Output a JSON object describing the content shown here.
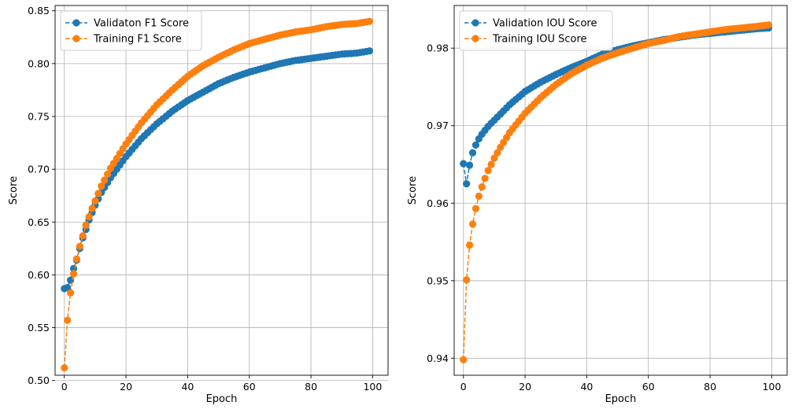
{
  "chart_data": [
    {
      "type": "line",
      "title": "",
      "xlabel": "Epoch",
      "ylabel": "Score",
      "xlim": [
        -3,
        105
      ],
      "ylim": [
        0.505,
        0.855
      ],
      "xticks": [
        "0",
        "20",
        "40",
        "60",
        "80",
        "100"
      ],
      "yticks": [
        "0.50",
        "0.55",
        "0.60",
        "0.65",
        "0.70",
        "0.75",
        "0.80",
        "0.85"
      ],
      "grid": true,
      "legend_position": "top-left",
      "series": [
        {
          "name": "Validaton F1 Score",
          "color": "#1f77b4",
          "marker": "circle",
          "linestyle": "dashed",
          "anchors": [
            [
              0,
              0.587
            ],
            [
              1,
              0.588
            ],
            [
              2,
              0.595
            ],
            [
              3,
              0.606
            ],
            [
              4,
              0.614
            ],
            [
              5,
              0.625
            ],
            [
              6,
              0.635
            ],
            [
              7,
              0.643
            ],
            [
              8,
              0.652
            ],
            [
              9,
              0.659
            ],
            [
              10,
              0.666
            ],
            [
              12,
              0.678
            ],
            [
              15,
              0.692
            ],
            [
              20,
              0.712
            ],
            [
              25,
              0.729
            ],
            [
              30,
              0.743
            ],
            [
              35,
              0.755
            ],
            [
              40,
              0.765
            ],
            [
              45,
              0.773
            ],
            [
              50,
              0.781
            ],
            [
              55,
              0.787
            ],
            [
              60,
              0.792
            ],
            [
              65,
              0.796
            ],
            [
              70,
              0.8
            ],
            [
              75,
              0.803
            ],
            [
              80,
              0.805
            ],
            [
              85,
              0.807
            ],
            [
              90,
              0.809
            ],
            [
              95,
              0.81
            ],
            [
              99,
              0.812
            ]
          ]
        },
        {
          "name": "Training F1 Score",
          "color": "#ff7f0e",
          "marker": "circle",
          "linestyle": "dashed",
          "anchors": [
            [
              0,
              0.512
            ],
            [
              1,
              0.557
            ],
            [
              2,
              0.583
            ],
            [
              3,
              0.601
            ],
            [
              4,
              0.615
            ],
            [
              5,
              0.627
            ],
            [
              6,
              0.637
            ],
            [
              7,
              0.647
            ],
            [
              8,
              0.655
            ],
            [
              9,
              0.663
            ],
            [
              10,
              0.67
            ],
            [
              12,
              0.684
            ],
            [
              15,
              0.701
            ],
            [
              20,
              0.724
            ],
            [
              25,
              0.744
            ],
            [
              30,
              0.761
            ],
            [
              35,
              0.775
            ],
            [
              40,
              0.788
            ],
            [
              45,
              0.798
            ],
            [
              50,
              0.806
            ],
            [
              55,
              0.813
            ],
            [
              60,
              0.819
            ],
            [
              65,
              0.823
            ],
            [
              70,
              0.827
            ],
            [
              75,
              0.83
            ],
            [
              80,
              0.832
            ],
            [
              85,
              0.835
            ],
            [
              90,
              0.837
            ],
            [
              95,
              0.838
            ],
            [
              99,
              0.84
            ]
          ]
        }
      ]
    },
    {
      "type": "line",
      "title": "",
      "xlabel": "Epoch",
      "ylabel": "Score",
      "xlim": [
        -3,
        105
      ],
      "ylim": [
        0.9378,
        0.9855
      ],
      "xticks": [
        "0",
        "20",
        "40",
        "60",
        "80",
        "100"
      ],
      "yticks": [
        "0.94",
        "0.95",
        "0.96",
        "0.97",
        "0.98"
      ],
      "grid": true,
      "legend_position": "top-left",
      "series": [
        {
          "name": "Validation IOU Score",
          "color": "#1f77b4",
          "marker": "circle",
          "linestyle": "dashed",
          "anchors": [
            [
              0,
              0.9651
            ],
            [
              1,
              0.9625
            ],
            [
              2,
              0.9649
            ],
            [
              3,
              0.9665
            ],
            [
              4,
              0.9675
            ],
            [
              5,
              0.9683
            ],
            [
              6,
              0.9689
            ],
            [
              7,
              0.9694
            ],
            [
              8,
              0.9699
            ],
            [
              9,
              0.9703
            ],
            [
              10,
              0.9707
            ],
            [
              12,
              0.9715
            ],
            [
              15,
              0.9727
            ],
            [
              20,
              0.9744
            ],
            [
              25,
              0.9756
            ],
            [
              30,
              0.9766
            ],
            [
              35,
              0.9775
            ],
            [
              40,
              0.9783
            ],
            [
              45,
              0.9792
            ],
            [
              50,
              0.9798
            ],
            [
              55,
              0.9803
            ],
            [
              60,
              0.9807
            ],
            [
              65,
              0.9811
            ],
            [
              70,
              0.9814
            ],
            [
              75,
              0.9817
            ],
            [
              80,
              0.9819
            ],
            [
              85,
              0.9821
            ],
            [
              90,
              0.9823
            ],
            [
              95,
              0.9825
            ],
            [
              99,
              0.9826
            ]
          ]
        },
        {
          "name": "Training IOU Score",
          "color": "#ff7f0e",
          "marker": "circle",
          "linestyle": "dashed",
          "anchors": [
            [
              0,
              0.9398
            ],
            [
              1,
              0.9501
            ],
            [
              2,
              0.9546
            ],
            [
              3,
              0.9573
            ],
            [
              4,
              0.9593
            ],
            [
              5,
              0.9609
            ],
            [
              6,
              0.9621
            ],
            [
              7,
              0.9632
            ],
            [
              8,
              0.9642
            ],
            [
              9,
              0.965
            ],
            [
              10,
              0.9658
            ],
            [
              12,
              0.9672
            ],
            [
              15,
              0.9691
            ],
            [
              20,
              0.9716
            ],
            [
              25,
              0.9736
            ],
            [
              30,
              0.9753
            ],
            [
              35,
              0.9767
            ],
            [
              40,
              0.9778
            ],
            [
              45,
              0.9787
            ],
            [
              50,
              0.9794
            ],
            [
              55,
              0.98
            ],
            [
              60,
              0.9806
            ],
            [
              65,
              0.981
            ],
            [
              70,
              0.9815
            ],
            [
              75,
              0.9818
            ],
            [
              80,
              0.9821
            ],
            [
              85,
              0.9824
            ],
            [
              90,
              0.9826
            ],
            [
              95,
              0.9828
            ],
            [
              99,
              0.983
            ]
          ]
        }
      ]
    }
  ]
}
